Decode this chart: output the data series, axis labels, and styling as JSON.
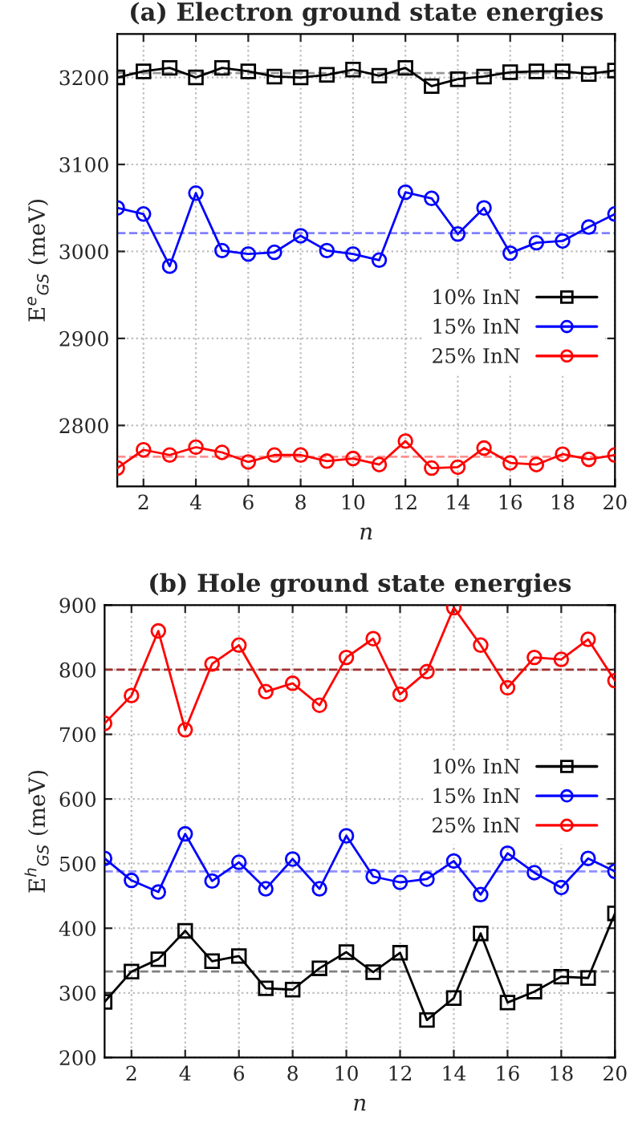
{
  "chart_data": [
    {
      "type": "line",
      "title": "(a) Electron ground state energies",
      "xlabel": "n",
      "ylabel": "E$^{e}$$_{GS}$ (meV)",
      "x": [
        1,
        2,
        3,
        4,
        5,
        6,
        7,
        8,
        9,
        10,
        11,
        12,
        13,
        14,
        15,
        16,
        17,
        18,
        19,
        20
      ],
      "series": [
        {
          "name": "10% InN",
          "color": "#000000",
          "marker": "square",
          "values": [
            3200,
            3207,
            3211,
            3200,
            3211,
            3207,
            3201,
            3200,
            3203,
            3209,
            3202,
            3211,
            3190,
            3198,
            3201,
            3206,
            3207,
            3207,
            3204,
            3208
          ]
        },
        {
          "name": "15% InN",
          "color": "#0000ff",
          "marker": "circle",
          "values": [
            3050,
            3043,
            2983,
            3067,
            3001,
            2997,
            2999,
            3018,
            3001,
            2997,
            2990,
            3068,
            3061,
            3020,
            3050,
            2998,
            3010,
            3012,
            3028,
            3043
          ]
        },
        {
          "name": "25% InN",
          "color": "#ff0000",
          "marker": "circle",
          "values": [
            2751,
            2772,
            2766,
            2775,
            2769,
            2758,
            2766,
            2766,
            2759,
            2762,
            2755,
            2782,
            2751,
            2752,
            2774,
            2757,
            2755,
            2767,
            2761,
            2766
          ]
        }
      ],
      "ref_lines": [
        {
          "axis": "y",
          "value": 3205,
          "color": "#999999",
          "line_style": "dashed"
        },
        {
          "axis": "y",
          "value": 3021,
          "color": "#8080ff",
          "line_style": "dashed"
        },
        {
          "axis": "y",
          "value": 2764,
          "color": "#ff9090",
          "line_style": "dashed"
        }
      ],
      "xlim": [
        1,
        20
      ],
      "xticks": [
        2,
        4,
        6,
        8,
        10,
        12,
        14,
        16,
        18,
        20
      ],
      "ylim": [
        2730,
        3250
      ],
      "yticks": [
        2800,
        2900,
        3000,
        3100,
        3200
      ],
      "grid": true,
      "legend": "right",
      "line_style": "solid"
    },
    {
      "type": "line",
      "title": "(b) Hole ground state energies",
      "xlabel": "n",
      "ylabel": "E$^{h}$$_{GS}$ (meV)",
      "x": [
        1,
        2,
        3,
        4,
        5,
        6,
        7,
        8,
        9,
        10,
        11,
        12,
        13,
        14,
        15,
        16,
        17,
        18,
        19,
        20
      ],
      "series": [
        {
          "name": "10% InN",
          "color": "#000000",
          "marker": "square",
          "values": [
            286,
            333,
            352,
            396,
            349,
            357,
            307,
            305,
            338,
            363,
            332,
            362,
            258,
            292,
            392,
            285,
            302,
            325,
            323,
            423
          ]
        },
        {
          "name": "15% InN",
          "color": "#0000ff",
          "marker": "circle",
          "values": [
            508,
            474,
            456,
            546,
            473,
            502,
            461,
            507,
            461,
            543,
            480,
            471,
            476,
            504,
            452,
            516,
            486,
            463,
            508,
            488
          ]
        },
        {
          "name": "25% InN",
          "color": "#ff0000",
          "marker": "circle",
          "values": [
            717,
            760,
            860,
            707,
            809,
            838,
            766,
            779,
            745,
            819,
            848,
            762,
            797,
            896,
            838,
            772,
            819,
            816,
            847,
            783
          ]
        }
      ],
      "ref_lines": [
        {
          "axis": "y",
          "value": 333,
          "color": "#808080",
          "line_style": "dashed"
        },
        {
          "axis": "y",
          "value": 488,
          "color": "#9090ff",
          "line_style": "dashed"
        },
        {
          "axis": "y",
          "value": 800,
          "color": "#a03030",
          "line_style": "dashed"
        }
      ],
      "xlim": [
        1,
        20
      ],
      "xticks": [
        2,
        4,
        6,
        8,
        10,
        12,
        14,
        16,
        18,
        20
      ],
      "ylim": [
        200,
        900
      ],
      "yticks": [
        200,
        300,
        400,
        500,
        600,
        700,
        800,
        900
      ],
      "grid": true,
      "legend": "right",
      "line_style": "solid"
    }
  ]
}
